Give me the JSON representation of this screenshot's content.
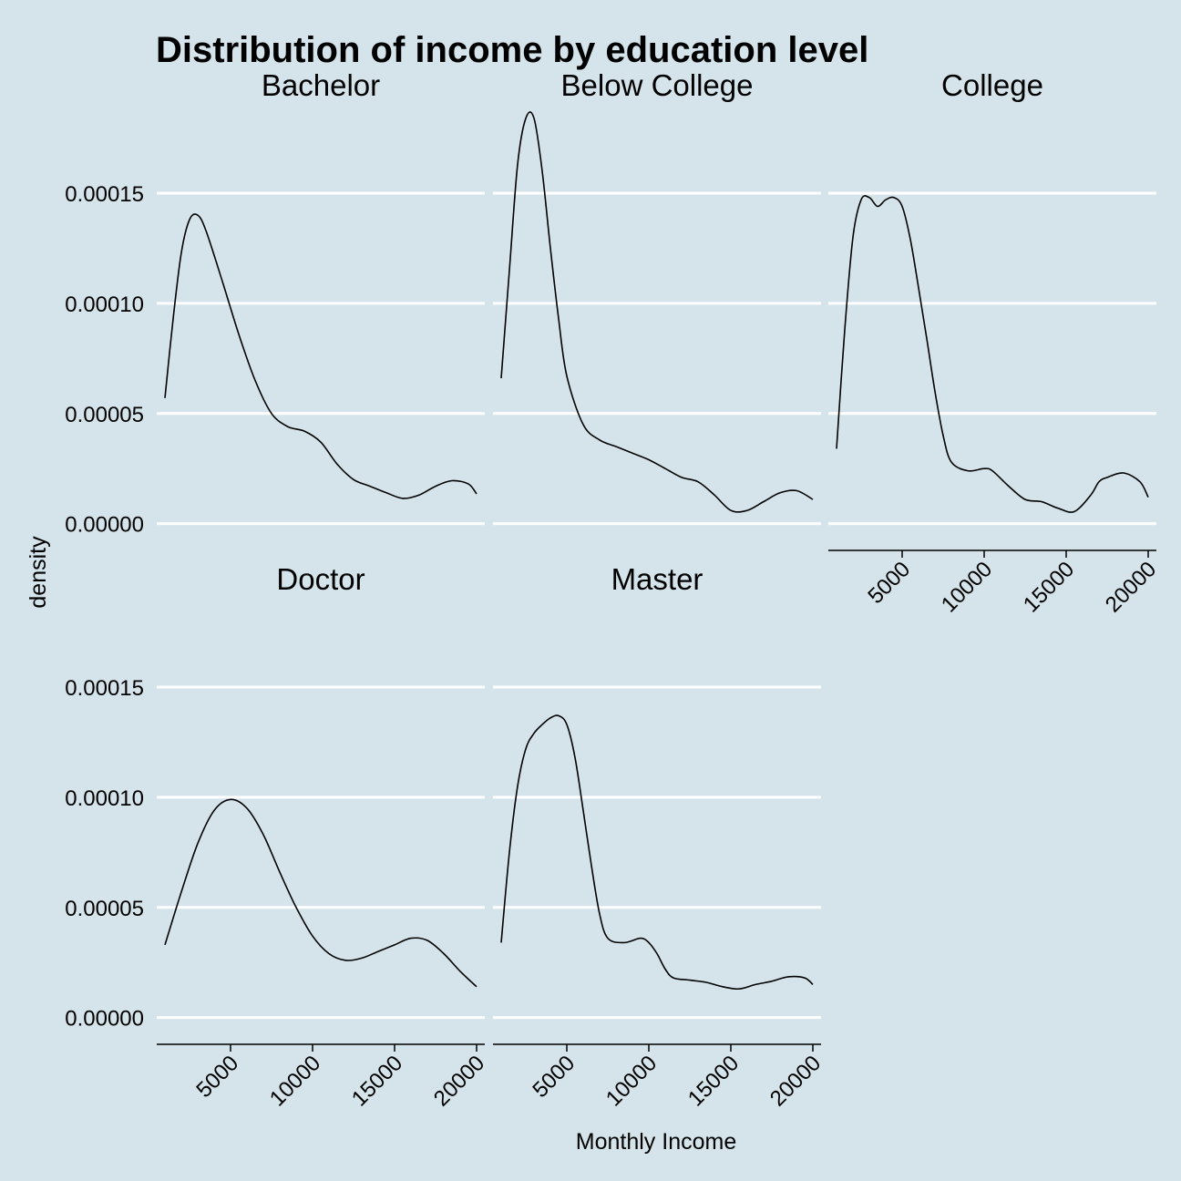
{
  "chart_data": {
    "type": "line",
    "title": "Distribution of income by education level",
    "xlabel": "Monthly Income",
    "ylabel": "density",
    "xlim": [
      500,
      20500
    ],
    "ylim": [
      -8e-06,
      0.000193
    ],
    "x_ticks": [
      5000,
      10000,
      15000,
      20000
    ],
    "x_tick_labels": [
      "5000",
      "10000",
      "15000",
      "20000"
    ],
    "y_ticks": [
      0,
      5e-05,
      0.0001,
      0.00015
    ],
    "y_tick_labels": [
      "0.00000",
      "0.00005",
      "0.00010",
      "0.00015"
    ],
    "grid": "horizontal major lines, white",
    "background": "#d5e4eb",
    "line_color": "#000000",
    "panels": [
      {
        "name": "Bachelor",
        "points": [
          [
            1000,
            5.7e-05
          ],
          [
            1500,
            9.3e-05
          ],
          [
            2000,
            0.000123
          ],
          [
            2500,
            0.000138
          ],
          [
            3000,
            0.00014
          ],
          [
            3500,
            0.000133
          ],
          [
            4500,
            0.00011
          ],
          [
            5500,
            8.6e-05
          ],
          [
            6500,
            6.5e-05
          ],
          [
            7500,
            5e-05
          ],
          [
            8500,
            4.4e-05
          ],
          [
            9500,
            4.2e-05
          ],
          [
            10500,
            3.7e-05
          ],
          [
            11500,
            2.7e-05
          ],
          [
            12500,
            2e-05
          ],
          [
            13500,
            1.7e-05
          ],
          [
            14500,
            1.4e-05
          ],
          [
            15500,
            1.15e-05
          ],
          [
            16500,
            1.3e-05
          ],
          [
            17500,
            1.7e-05
          ],
          [
            18500,
            1.95e-05
          ],
          [
            19500,
            1.8e-05
          ],
          [
            20000,
            1.35e-05
          ]
        ]
      },
      {
        "name": "Below College",
        "points": [
          [
            1000,
            6.6e-05
          ],
          [
            1500,
            0.000115
          ],
          [
            2000,
            0.000163
          ],
          [
            2500,
            0.000184
          ],
          [
            3000,
            0.000184
          ],
          [
            3500,
            0.00016
          ],
          [
            4000,
            0.000125
          ],
          [
            4500,
            9.3e-05
          ],
          [
            5000,
            6.7e-05
          ],
          [
            6000,
            4.5e-05
          ],
          [
            7000,
            3.8e-05
          ],
          [
            8000,
            3.5e-05
          ],
          [
            9000,
            3.2e-05
          ],
          [
            10000,
            2.9e-05
          ],
          [
            11000,
            2.5e-05
          ],
          [
            12000,
            2.1e-05
          ],
          [
            13000,
            1.9e-05
          ],
          [
            14000,
            1.3e-05
          ],
          [
            15000,
            6e-06
          ],
          [
            16000,
            6e-06
          ],
          [
            17000,
            1e-05
          ],
          [
            18000,
            1.4e-05
          ],
          [
            19000,
            1.5e-05
          ],
          [
            20000,
            1.1e-05
          ]
        ]
      },
      {
        "name": "College",
        "points": [
          [
            1000,
            3.4e-05
          ],
          [
            1500,
            8.8e-05
          ],
          [
            2000,
            0.00013
          ],
          [
            2500,
            0.000147
          ],
          [
            3000,
            0.000148
          ],
          [
            3500,
            0.000144
          ],
          [
            4000,
            0.000147
          ],
          [
            4500,
            0.000148
          ],
          [
            5000,
            0.000144
          ],
          [
            5500,
            0.000129
          ],
          [
            6000,
            0.000107
          ],
          [
            6500,
            8.4e-05
          ],
          [
            7000,
            6e-05
          ],
          [
            7500,
            4e-05
          ],
          [
            8000,
            2.8e-05
          ],
          [
            9000,
            2.4e-05
          ],
          [
            10000,
            2.5e-05
          ],
          [
            10500,
            2.4e-05
          ],
          [
            11500,
            1.7e-05
          ],
          [
            12500,
            1.1e-05
          ],
          [
            13500,
            1e-05
          ],
          [
            14500,
            7e-06
          ],
          [
            15500,
            5.5e-06
          ],
          [
            16500,
            1.3e-05
          ],
          [
            17000,
            1.9e-05
          ],
          [
            17500,
            2.1e-05
          ],
          [
            18500,
            2.3e-05
          ],
          [
            19500,
            1.9e-05
          ],
          [
            20000,
            1.2e-05
          ]
        ]
      },
      {
        "name": "Doctor",
        "points": [
          [
            1000,
            3.3e-05
          ],
          [
            2000,
            5.7e-05
          ],
          [
            3000,
            7.9e-05
          ],
          [
            4000,
            9.4e-05
          ],
          [
            5000,
            9.9e-05
          ],
          [
            6000,
            9.5e-05
          ],
          [
            7000,
            8.3e-05
          ],
          [
            8000,
            6.6e-05
          ],
          [
            9000,
            5e-05
          ],
          [
            10000,
            3.7e-05
          ],
          [
            11000,
            2.9e-05
          ],
          [
            12000,
            2.6e-05
          ],
          [
            13000,
            2.7e-05
          ],
          [
            14000,
            3e-05
          ],
          [
            15000,
            3.3e-05
          ],
          [
            16000,
            3.6e-05
          ],
          [
            17000,
            3.5e-05
          ],
          [
            18000,
            2.9e-05
          ],
          [
            19000,
            2.1e-05
          ],
          [
            20000,
            1.4e-05
          ]
        ]
      },
      {
        "name": "Master",
        "points": [
          [
            1000,
            3.4e-05
          ],
          [
            1500,
            7.5e-05
          ],
          [
            2000,
            0.000105
          ],
          [
            2500,
            0.000122
          ],
          [
            3000,
            0.000129
          ],
          [
            3500,
            0.000133
          ],
          [
            4000,
            0.000136
          ],
          [
            4500,
            0.000137
          ],
          [
            5000,
            0.000133
          ],
          [
            5500,
            0.000118
          ],
          [
            6000,
            9.4e-05
          ],
          [
            6500,
            6.9e-05
          ],
          [
            7000,
            4.7e-05
          ],
          [
            7500,
            3.6e-05
          ],
          [
            8500,
            3.4e-05
          ],
          [
            9500,
            3.6e-05
          ],
          [
            10000,
            3.4e-05
          ],
          [
            10500,
            2.9e-05
          ],
          [
            11000,
            2.2e-05
          ],
          [
            11500,
            1.8e-05
          ],
          [
            12500,
            1.7e-05
          ],
          [
            13500,
            1.6e-05
          ],
          [
            14500,
            1.4e-05
          ],
          [
            15500,
            1.3e-05
          ],
          [
            16500,
            1.5e-05
          ],
          [
            17500,
            1.65e-05
          ],
          [
            18500,
            1.85e-05
          ],
          [
            19500,
            1.8e-05
          ],
          [
            20000,
            1.5e-05
          ]
        ]
      }
    ]
  }
}
